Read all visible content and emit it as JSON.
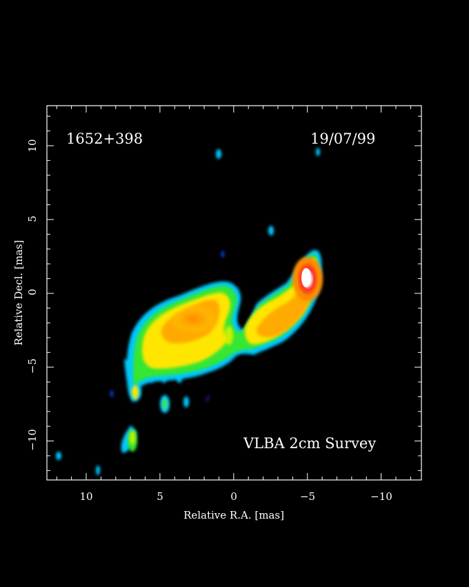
{
  "source_name": "1652+398",
  "date": "19/07/99",
  "survey_label": "VLBA 2cm Survey",
  "axes": {
    "x_label": "Relative R.A. [mas]",
    "y_label": "Relative Decl. [mas]",
    "x_ticks": [
      "10",
      "5",
      "0",
      "−5",
      "−10"
    ],
    "y_ticks": [
      "10",
      "5",
      "0",
      "−5",
      "−10"
    ],
    "x_range_mas": [
      12.8,
      -12.8
    ],
    "y_range_mas": [
      -12.8,
      12.8
    ]
  },
  "colors": {
    "background": "#000000",
    "frame": "#ffffff",
    "text": "#ffffff",
    "colormap": [
      "#5a00c8",
      "#0050ff",
      "#00c8ff",
      "#00f0b4",
      "#32e632",
      "#c8f000",
      "#ffe600",
      "#ffaa00",
      "#ff6400",
      "#ff1e1e",
      "#ffffff"
    ]
  }
}
